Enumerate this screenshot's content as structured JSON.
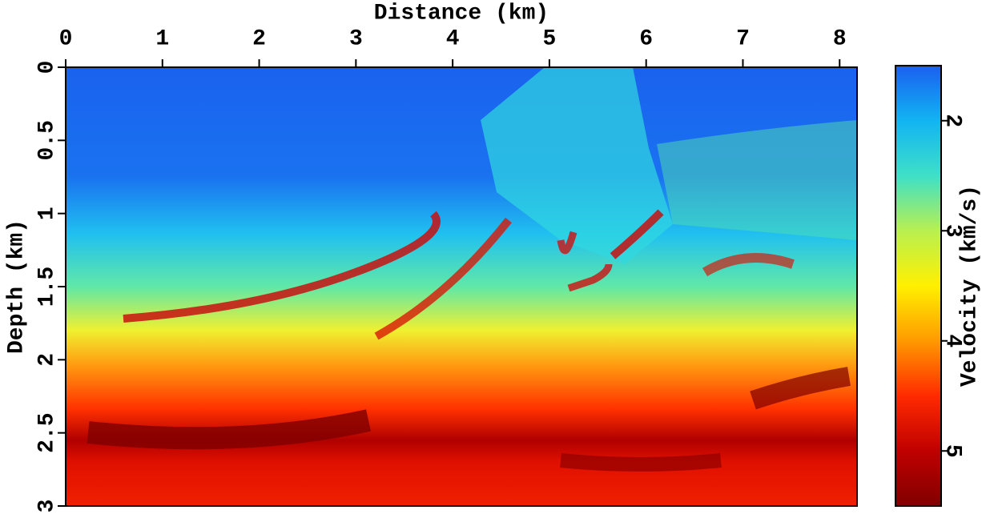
{
  "chart_data": {
    "type": "heatmap",
    "xlabel": "Distance (km)",
    "ylabel": "Depth (km)",
    "colorbar_label": "Velocity (km/s)",
    "xlim": [
      0,
      8.18
    ],
    "xticks": [
      0,
      1,
      2,
      3,
      4,
      5,
      6,
      7,
      8
    ],
    "ylim": [
      0,
      3
    ],
    "yticks": [
      0,
      0.5,
      1,
      1.5,
      2,
      2.5,
      3
    ],
    "clim": [
      1.5,
      5.5
    ],
    "cticks": [
      2,
      3,
      4,
      5
    ],
    "colormap": [
      "#1a5ff0",
      "#12b4f2",
      "#3ee0c8",
      "#b8f050",
      "#fff000",
      "#ff9a00",
      "#ff2a00",
      "#c00000",
      "#800000"
    ]
  }
}
